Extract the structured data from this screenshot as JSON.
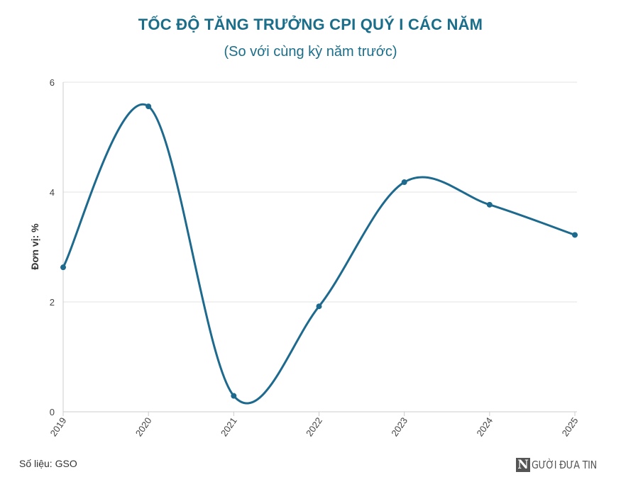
{
  "chart_data": {
    "type": "line",
    "title": "TỐC ĐỘ TĂNG TRƯỞNG CPI QUÝ I CÁC NĂM",
    "subtitle": "(So với cùng kỳ năm trước)",
    "ylabel": "Đơn vị: %",
    "xlabel": "",
    "categories": [
      "2019",
      "2020",
      "2021",
      "2022",
      "2023",
      "2024",
      "2025"
    ],
    "values": [
      2.63,
      5.56,
      0.29,
      1.92,
      4.18,
      3.77,
      3.22
    ],
    "ylim": [
      0,
      6
    ],
    "yticks": [
      "0",
      "2",
      "4",
      "6"
    ],
    "grid": true,
    "line_color": "#1d6a8e"
  },
  "footer": {
    "source": "Số liệu: GSO",
    "logo_mark": "N",
    "logo_text": "GƯỜI ĐƯA TIN"
  }
}
